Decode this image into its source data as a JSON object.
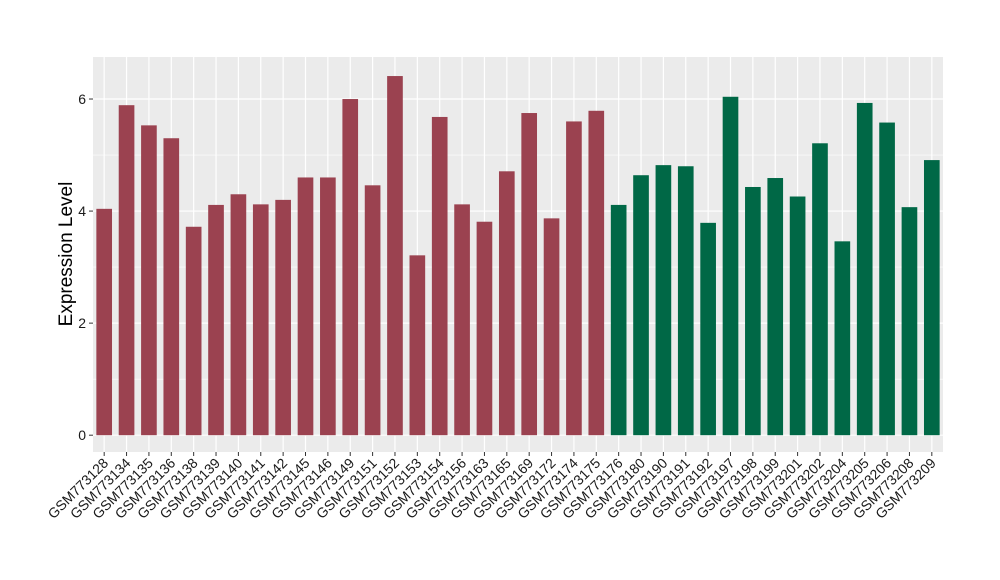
{
  "chart_data": {
    "type": "bar",
    "title": "",
    "xlabel": "",
    "ylabel": "Expression Level",
    "ylim": [
      -0.3,
      6.75
    ],
    "yticks": [
      0,
      2,
      4,
      6
    ],
    "grid": true,
    "legend": "none",
    "categories": [
      "GSM773128",
      "GSM773134",
      "GSM773135",
      "GSM773136",
      "GSM773138",
      "GSM773139",
      "GSM773140",
      "GSM773141",
      "GSM773142",
      "GSM773145",
      "GSM773146",
      "GSM773149",
      "GSM773151",
      "GSM773152",
      "GSM773153",
      "GSM773154",
      "GSM773156",
      "GSM773163",
      "GSM773165",
      "GSM773169",
      "GSM773172",
      "GSM773174",
      "GSM773175",
      "GSM773176",
      "GSM773180",
      "GSM773190",
      "GSM773191",
      "GSM773192",
      "GSM773197",
      "GSM773198",
      "GSM773199",
      "GSM773201",
      "GSM773202",
      "GSM773204",
      "GSM773205",
      "GSM773206",
      "GSM773208",
      "GSM773209"
    ],
    "values": [
      4.04,
      5.89,
      5.53,
      5.3,
      3.72,
      4.11,
      4.3,
      4.12,
      4.2,
      4.6,
      4.6,
      6.0,
      4.46,
      6.41,
      3.21,
      5.68,
      4.12,
      3.81,
      4.71,
      5.75,
      3.87,
      5.6,
      5.79,
      4.11,
      4.64,
      4.82,
      4.8,
      3.79,
      6.04,
      4.43,
      4.59,
      4.26,
      5.21,
      3.46,
      5.93,
      5.58,
      4.07,
      4.91
    ],
    "groups": [
      "a",
      "a",
      "a",
      "a",
      "a",
      "a",
      "a",
      "a",
      "a",
      "a",
      "a",
      "a",
      "a",
      "a",
      "a",
      "a",
      "a",
      "a",
      "a",
      "a",
      "a",
      "a",
      "a",
      "b",
      "b",
      "b",
      "b",
      "b",
      "b",
      "b",
      "b",
      "b",
      "b",
      "b",
      "b",
      "b",
      "b",
      "b"
    ],
    "colors": {
      "a": "#9b4250",
      "b": "#006846",
      "panel": "#ebebeb",
      "grid": "#ffffff"
    }
  }
}
